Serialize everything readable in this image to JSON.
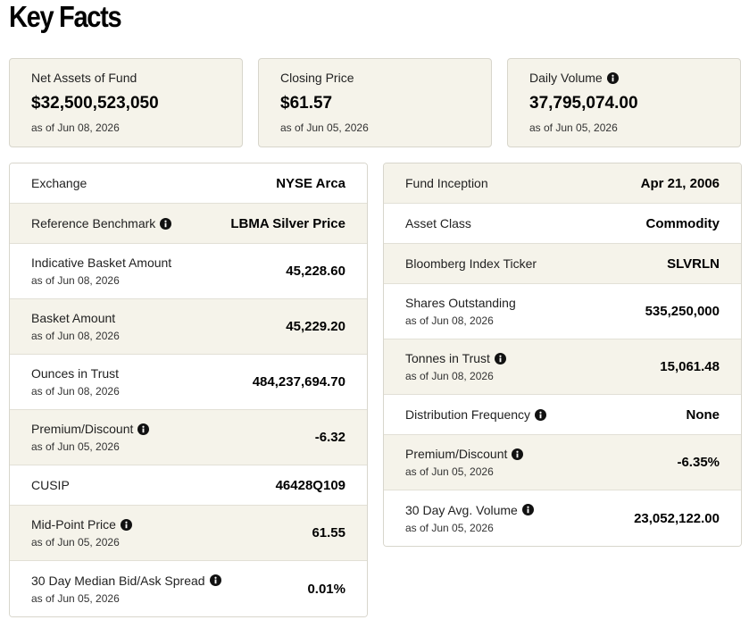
{
  "header": {
    "title": "Key Facts"
  },
  "cards": [
    {
      "label": "Net Assets of Fund",
      "value": "$32,500,523,050",
      "date": "as of Jun 08, 2026"
    },
    {
      "label": "Closing Price",
      "value": "$61.57",
      "date": "as of Jun 05, 2026"
    },
    {
      "label": "Daily Volume",
      "value": "37,795,074.00",
      "date": "as of Jun 05, 2026",
      "info": true
    }
  ],
  "left_table": {
    "rows": [
      {
        "label": "Exchange",
        "value": "NYSE Arca"
      },
      {
        "label": "Reference Benchmark",
        "value": "LBMA Silver Price",
        "info": true
      },
      {
        "label": "Indicative Basket Amount",
        "value": "45,228.60",
        "date": "as of Jun 08, 2026"
      },
      {
        "label": "Basket Amount",
        "value": "45,229.20",
        "date": "as of Jun 08, 2026"
      },
      {
        "label": "Ounces in Trust",
        "value": "484,237,694.70",
        "date": "as of Jun 08, 2026"
      },
      {
        "label": "Premium/Discount",
        "value": "-6.32",
        "date": "as of Jun 05, 2026",
        "info": true
      },
      {
        "label": "CUSIP",
        "value": "46428Q109"
      },
      {
        "label": "Mid-Point Price",
        "value": "61.55",
        "date": "as of Jun 05, 2026",
        "info": true
      },
      {
        "label": "30 Day Median Bid/Ask Spread",
        "value": "0.01%",
        "date": "as of Jun 05, 2026",
        "info": true
      }
    ]
  },
  "right_table": {
    "rows": [
      {
        "label": "Fund Inception",
        "value": "Apr 21, 2006"
      },
      {
        "label": "Asset Class",
        "value": "Commodity"
      },
      {
        "label": "Bloomberg Index Ticker",
        "value": "SLVRLN"
      },
      {
        "label": "Shares Outstanding",
        "value": "535,250,000",
        "date": "as of Jun 08, 2026"
      },
      {
        "label": "Tonnes in Trust",
        "value": "15,061.48",
        "date": "as of Jun 08, 2026",
        "info": true
      },
      {
        "label": "Distribution Frequency",
        "value": "None",
        "info": true
      },
      {
        "label": "Premium/Discount",
        "value": "-6.35%",
        "date": "as of Jun 05, 2026",
        "info": true
      },
      {
        "label": "30 Day Avg. Volume",
        "value": "23,052,122.00",
        "date": "as of Jun 05, 2026",
        "info": true
      }
    ]
  }
}
